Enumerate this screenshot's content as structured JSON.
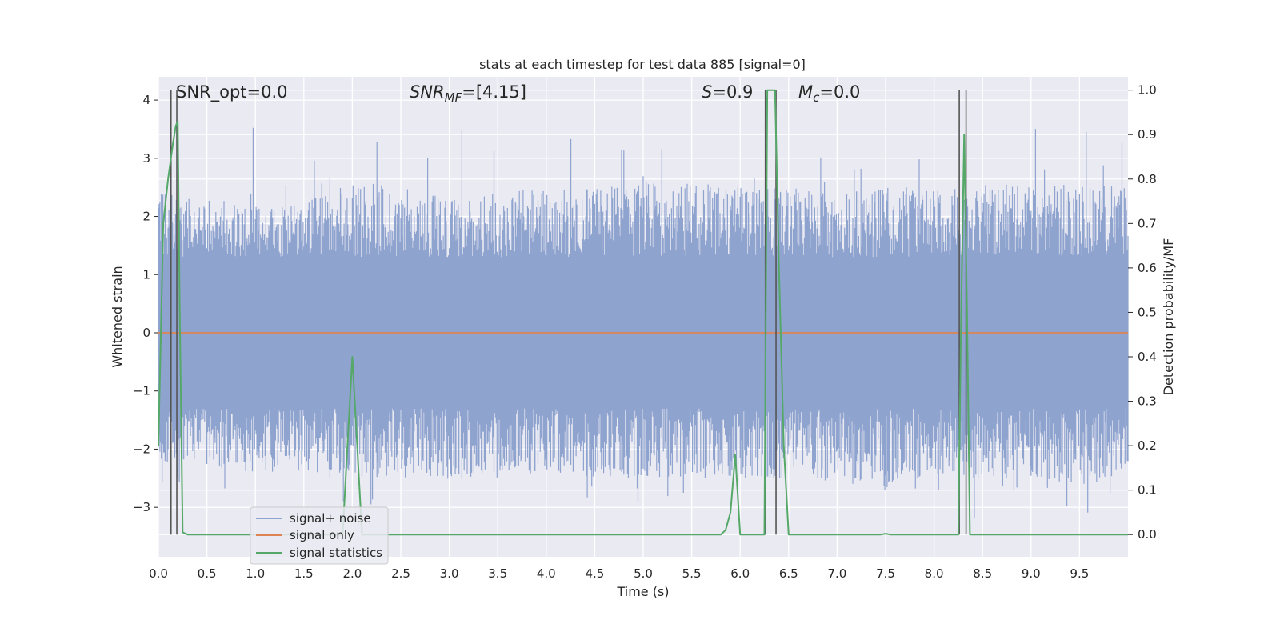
{
  "chart_data": {
    "type": "line",
    "title": "stats at each timestep for test data 885 [signal=0]",
    "xlabel": "Time (s)",
    "ylabel_left": "Whitened strain",
    "ylabel_right": "Detection probability/MF",
    "xlim": [
      0.0,
      10.0
    ],
    "ylim_left": [
      -3.85,
      4.4
    ],
    "ylim_right": [
      -0.05,
      1.03
    ],
    "xticks": [
      "0.0",
      "0.5",
      "1.0",
      "1.5",
      "2.0",
      "2.5",
      "3.0",
      "3.5",
      "4.0",
      "4.5",
      "5.0",
      "5.5",
      "6.0",
      "6.5",
      "7.0",
      "7.5",
      "8.0",
      "8.5",
      "9.0",
      "9.5"
    ],
    "yticks_left": [
      "4",
      "3",
      "2",
      "1",
      "0",
      "−1",
      "−2",
      "−3"
    ],
    "yticks_right": [
      "1.0",
      "0.9",
      "0.8",
      "0.7",
      "0.6",
      "0.5",
      "0.4",
      "0.3",
      "0.2",
      "0.1",
      "0.0"
    ],
    "grid": true,
    "legend_position": "lower-left",
    "annotations": {
      "snr_opt": "SNR_opt=0.0",
      "snr_mf_base": "SNR",
      "snr_mf_sub": "MF",
      "snr_mf_value": "=[4.15]",
      "s_var": "S",
      "s_value": "=0.9",
      "mc_var": "M",
      "mc_sub": "c",
      "mc_value": "=0.0"
    },
    "series": [
      {
        "name": "signal+ noise",
        "axis": "left",
        "color": "#8fa3cf",
        "envelope": {
          "t": [
            0.0,
            0.5,
            1.0,
            1.5,
            2.0,
            2.5,
            3.0,
            3.5,
            4.0,
            4.5,
            5.0,
            5.5,
            6.0,
            6.5,
            7.0,
            7.5,
            8.0,
            8.5,
            9.0,
            9.5,
            10.0
          ],
          "upper_typical": [
            2.4,
            2.3,
            2.2,
            2.3,
            2.6,
            2.5,
            2.3,
            2.4,
            2.5,
            2.5,
            2.6,
            2.6,
            2.5,
            2.5,
            2.4,
            2.5,
            2.5,
            2.5,
            2.6,
            2.6,
            2.5
          ],
          "lower_typical": [
            -2.3,
            -2.3,
            -2.4,
            -2.4,
            -2.5,
            -2.5,
            -2.5,
            -2.5,
            -2.4,
            -2.5,
            -2.5,
            -2.5,
            -2.5,
            -2.5,
            -2.6,
            -2.6,
            -2.5,
            -2.5,
            -2.5,
            -2.6,
            -2.5
          ],
          "peak_max": 3.65,
          "trough_min": -3.4
        }
      },
      {
        "name": "signal only",
        "axis": "left",
        "color": "#dd8452",
        "x": [
          0.0,
          10.0
        ],
        "y": [
          0.0,
          0.0
        ]
      },
      {
        "name": "signal statistics",
        "axis": "right",
        "color": "#55a868",
        "x": [
          0.0,
          0.05,
          0.1,
          0.15,
          0.18,
          0.2,
          0.22,
          0.25,
          0.3,
          1.9,
          1.95,
          2.0,
          2.05,
          2.1,
          2.2,
          5.8,
          5.85,
          5.9,
          5.95,
          6.0,
          6.25,
          6.28,
          6.32,
          6.36,
          6.4,
          6.45,
          6.5,
          7.45,
          7.5,
          7.55,
          8.25,
          8.28,
          8.31,
          8.34,
          8.37,
          8.4,
          10.0
        ],
        "y": [
          0.2,
          0.7,
          0.8,
          0.88,
          0.92,
          0.93,
          0.5,
          0.005,
          0.0,
          0.0,
          0.2,
          0.4,
          0.2,
          0.0,
          0.0,
          0.0,
          0.01,
          0.05,
          0.18,
          0.0,
          0.0,
          1.0,
          1.0,
          1.0,
          0.6,
          0.2,
          0.0,
          0.0,
          0.002,
          0.0,
          0.0,
          0.5,
          0.9,
          0.5,
          0.0,
          0.0,
          0.0
        ]
      }
    ],
    "vertical_markers": {
      "color": "#555555",
      "x": [
        0.13,
        0.19,
        6.26,
        6.37,
        8.26,
        8.33
      ]
    }
  }
}
